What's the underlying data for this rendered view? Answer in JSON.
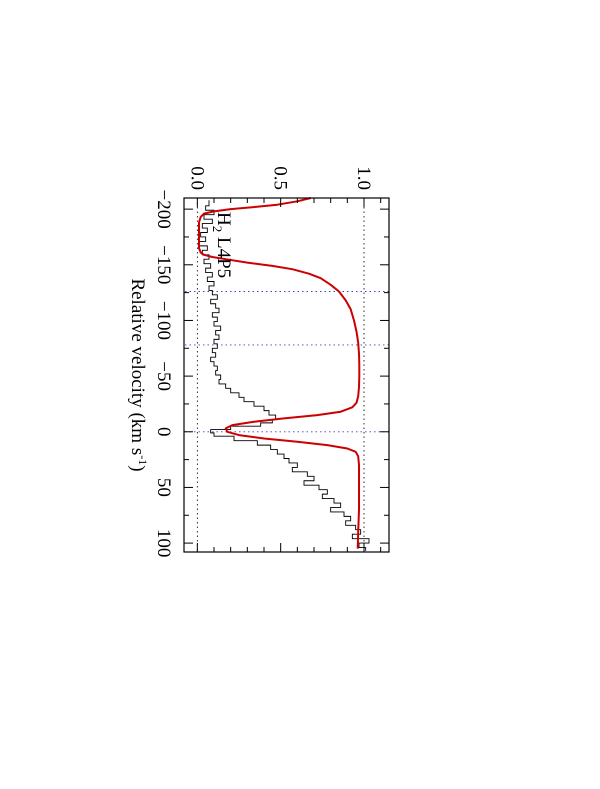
{
  "chart_data": {
    "type": "line",
    "title": "",
    "annotation": {
      "species": "H",
      "subscript": "2",
      "transition": " L4P5"
    },
    "xlabel": {
      "text": "Relative velocity (km s",
      "superscript": "-1",
      "close": ")"
    },
    "ylabel": "",
    "xlim": [
      -210,
      108
    ],
    "ylim": [
      -0.08,
      1.15
    ],
    "x_ticks": [
      -200,
      -150,
      -100,
      -50,
      0,
      50,
      100
    ],
    "x_tick_labels": [
      "−200",
      "−150",
      "−100",
      "−50",
      "0",
      "50",
      "100"
    ],
    "y_ticks": [
      0.0,
      0.5,
      1.0
    ],
    "y_tick_labels": [
      "0.0",
      "0.5",
      "1.0"
    ],
    "reference_lines_x": [
      -126,
      -78,
      0
    ],
    "reference_lines_y": [
      0.0,
      1.0
    ],
    "orientation": "rotated 90 degrees clockwise",
    "series": [
      {
        "style": "histogram",
        "color": "#000000",
        "points": [
          [
            -208,
            0.07
          ],
          [
            -203,
            0.05
          ],
          [
            -199,
            0.1
          ],
          [
            -195,
            0.04
          ],
          [
            -191,
            0.09
          ],
          [
            -187,
            0.03
          ],
          [
            -183,
            0.06
          ],
          [
            -179,
            0.02
          ],
          [
            -175,
            0.05
          ],
          [
            -171,
            0.01
          ],
          [
            -167,
            0.06
          ],
          [
            -163,
            0.03
          ],
          [
            -159,
            0.07
          ],
          [
            -155,
            0.04
          ],
          [
            -151,
            0.08
          ],
          [
            -147,
            0.05
          ],
          [
            -143,
            0.09
          ],
          [
            -139,
            0.06
          ],
          [
            -135,
            0.1
          ],
          [
            -131,
            0.07
          ],
          [
            -127,
            0.09
          ],
          [
            -123,
            0.12
          ],
          [
            -119,
            0.08
          ],
          [
            -115,
            0.11
          ],
          [
            -111,
            0.13
          ],
          [
            -107,
            0.09
          ],
          [
            -103,
            0.12
          ],
          [
            -99,
            0.1
          ],
          [
            -95,
            0.14
          ],
          [
            -91,
            0.11
          ],
          [
            -87,
            0.13
          ],
          [
            -83,
            0.1
          ],
          [
            -79,
            0.12
          ],
          [
            -75,
            0.09
          ],
          [
            -71,
            0.11
          ],
          [
            -67,
            0.08
          ],
          [
            -63,
            0.1
          ],
          [
            -59,
            0.12
          ],
          [
            -55,
            0.11
          ],
          [
            -51,
            0.14
          ],
          [
            -47,
            0.13
          ],
          [
            -43,
            0.17
          ],
          [
            -39,
            0.2
          ],
          [
            -35,
            0.25
          ],
          [
            -31,
            0.28
          ],
          [
            -27,
            0.34
          ],
          [
            -23,
            0.4
          ],
          [
            -19,
            0.43
          ],
          [
            -15,
            0.47
          ],
          [
            -11,
            0.45
          ],
          [
            -8,
            0.38
          ],
          [
            -5,
            0.2
          ],
          [
            -2,
            0.08
          ],
          [
            1,
            0.1
          ],
          [
            4,
            0.22
          ],
          [
            8,
            0.36
          ],
          [
            12,
            0.44
          ],
          [
            16,
            0.48
          ],
          [
            20,
            0.52
          ],
          [
            24,
            0.55
          ],
          [
            28,
            0.6
          ],
          [
            32,
            0.57
          ],
          [
            36,
            0.66
          ],
          [
            40,
            0.7
          ],
          [
            44,
            0.64
          ],
          [
            48,
            0.73
          ],
          [
            52,
            0.78
          ],
          [
            56,
            0.75
          ],
          [
            60,
            0.82
          ],
          [
            64,
            0.86
          ],
          [
            68,
            0.8
          ],
          [
            72,
            0.88
          ],
          [
            76,
            0.92
          ],
          [
            80,
            0.89
          ],
          [
            84,
            0.95
          ],
          [
            88,
            0.98
          ],
          [
            92,
            0.93
          ],
          [
            96,
            1.03
          ],
          [
            100,
            0.97
          ],
          [
            104,
            1.01
          ]
        ]
      },
      {
        "style": "model",
        "color": "#cc0000",
        "points": [
          [
            -210,
            0.68
          ],
          [
            -207,
            0.6
          ],
          [
            -204,
            0.48
          ],
          [
            -202,
            0.35
          ],
          [
            -200,
            0.2
          ],
          [
            -198,
            0.1
          ],
          [
            -196,
            0.04
          ],
          [
            -193,
            0.02
          ],
          [
            -188,
            0.01
          ],
          [
            -180,
            0.01
          ],
          [
            -170,
            0.01
          ],
          [
            -165,
            0.01
          ],
          [
            -161,
            0.02
          ],
          [
            -159,
            0.04
          ],
          [
            -157,
            0.09
          ],
          [
            -155,
            0.17
          ],
          [
            -152,
            0.3
          ],
          [
            -149,
            0.45
          ],
          [
            -146,
            0.57
          ],
          [
            -142,
            0.67
          ],
          [
            -138,
            0.74
          ],
          [
            -132,
            0.8
          ],
          [
            -126,
            0.85
          ],
          [
            -118,
            0.89
          ],
          [
            -110,
            0.92
          ],
          [
            -100,
            0.94
          ],
          [
            -90,
            0.955
          ],
          [
            -80,
            0.965
          ],
          [
            -70,
            0.97
          ],
          [
            -60,
            0.972
          ],
          [
            -50,
            0.972
          ],
          [
            -40,
            0.97
          ],
          [
            -32,
            0.965
          ],
          [
            -26,
            0.955
          ],
          [
            -22,
            0.93
          ],
          [
            -18,
            0.86
          ],
          [
            -15,
            0.72
          ],
          [
            -12,
            0.52
          ],
          [
            -9,
            0.34
          ],
          [
            -6,
            0.21
          ],
          [
            -3,
            0.17
          ],
          [
            0,
            0.18
          ],
          [
            3,
            0.25
          ],
          [
            6,
            0.4
          ],
          [
            9,
            0.6
          ],
          [
            12,
            0.78
          ],
          [
            15,
            0.9
          ],
          [
            18,
            0.95
          ],
          [
            22,
            0.965
          ],
          [
            30,
            0.97
          ],
          [
            50,
            0.97
          ],
          [
            70,
            0.97
          ],
          [
            90,
            0.965
          ],
          [
            105,
            0.962
          ]
        ]
      }
    ]
  }
}
